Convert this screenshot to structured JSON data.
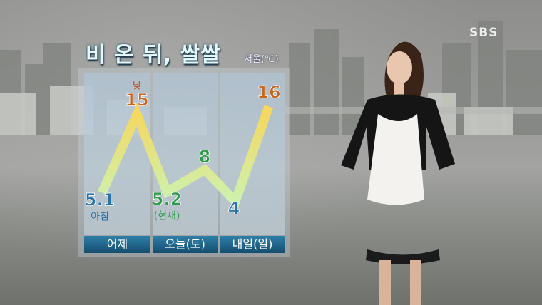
{
  "broadcaster_logo": "SBS",
  "title": "비 온 뒤, 쌀쌀",
  "unit_label": "서울(℃)",
  "chart_data": {
    "type": "line",
    "categories": [
      "어제",
      "오늘(토)",
      "내일(일)"
    ],
    "points": [
      {
        "day": "어제",
        "value": 5.1,
        "label": "5.1",
        "note": "아침",
        "color": "#2a73a8"
      },
      {
        "day": "어제",
        "value": 15,
        "label": "15",
        "note": "낮",
        "color": "#c8661e"
      },
      {
        "day": "오늘(토)",
        "value": 5.2,
        "label": "5.2",
        "note": "(현재)",
        "color": "#2f9a4a"
      },
      {
        "day": "오늘(토)",
        "value": 8,
        "label": "8",
        "note": "",
        "color": "#2f9a4a"
      },
      {
        "day": "내일(일)",
        "value": 4,
        "label": "4",
        "note": "",
        "color": "#2a73a8"
      },
      {
        "day": "내일(일)",
        "value": 16,
        "label": "16",
        "note": "",
        "color": "#c8661e"
      }
    ]
  }
}
